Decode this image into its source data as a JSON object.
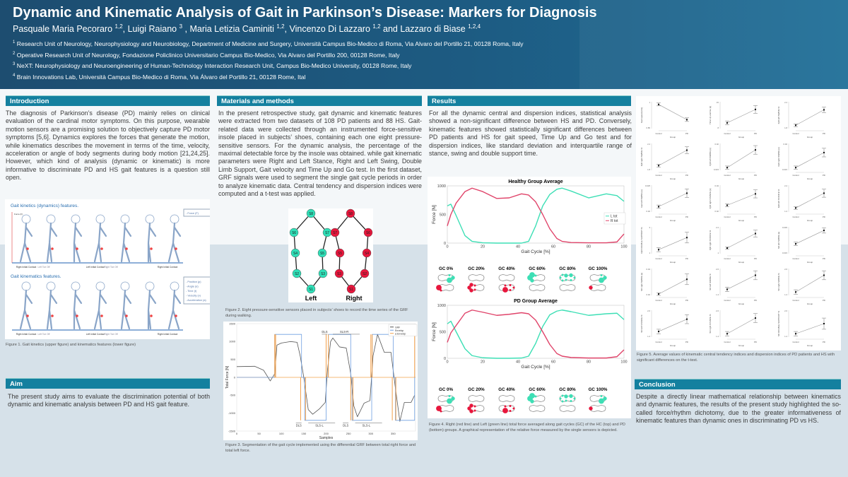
{
  "header": {
    "title": "Dynamic and Kinematic Analysis of Gait in Parkinson’s Disease: Markers for Diagnosis",
    "authors": [
      {
        "name": "Pasquale Maria Pecoraro ",
        "sup": "1,2",
        "sep": ", "
      },
      {
        "name": "Luigi Raiano ",
        "sup": "3",
        "sep": " , "
      },
      {
        "name": "Maria Letizia Caminiti ",
        "sup": "1,2",
        "sep": ", "
      },
      {
        "name": "Vincenzo Di Lazzaro ",
        "sup": "1,2",
        "sep": " and "
      },
      {
        "name": "Lazzaro di Biase ",
        "sup": "1,2,4",
        "sep": ""
      }
    ],
    "affiliations": [
      {
        "sup": "1",
        "text": " Research Unit of Neurology, Neurophysiology and Neurobiology, Department of Medicine and Surgery, Università Campus Bio-Medico di Roma, Via Alvaro del Portillo 21, 00128 Roma, Italy"
      },
      {
        "sup": "2",
        "text": " Operative Research Unit of Neurology, Fondazione Policlinico Universitario Campus Bio-Medico, Via Alvaro del Portillo 200, 00128 Rome, Italy"
      },
      {
        "sup": "3",
        "text": " NeXT: Neurophysiology and Neuroengineering of Human-Technology Interaction Research Unit, Campus Bio-Medico University, 00128 Rome, Italy"
      },
      {
        "sup": "4",
        "text": " Brain Innovations Lab, Università Campus Bio-Medico di Roma, Via Álvaro del Portillo 21, 00128 Rome, Ital"
      }
    ]
  },
  "sections": {
    "introduction": {
      "heading": "Introduction",
      "text": "The diagnosis of Parkinson’s disease (PD) mainly relies on clinical evaluation of the cardinal motor symptoms. On this purpose, wearable motion sensors are a promising solution to objectively capture PD motor symptoms [5,6]. Dynamics explores the forces that generate the motion, while  kinematics describes the movement in terms of the time, velocity, acceleration or angle of body segments during body motion [21,24,25]. However, which kind of analysis (dynamic or kinematic) is more informative to discriminate PD and HS gait features is a question still open."
    },
    "aim": {
      "heading": "Aim",
      "text": "The present study aims to evaluate the discrimination potential of both dynamic and kinematic analysis between PD and HS gait feature."
    },
    "methods": {
      "heading": "Materials and methods",
      "text": "In the present retrospective study, gait dynamic and kinematic features were extracted from two datasets of 108 PD patients and 88 HS. Gait-related data were collected through an instrumented force-sensitive insole placed in subjects’ shoes, containing each one eight pressure-sensitive sensors. For the dynamic analysis, the percentage of the maximal detectable force by the insole was obtained. while gait kinematic parameters were Right and Left Stance, Right and Left Swing, Double Limb Support, Gait velocity and Time Up and Go test. In the first dataset, GRF signals were used to segment the single gait cycle periods in order to analyze kinematic data. Central tendency and dispersion indices were computed and a t-test was applied."
    },
    "results": {
      "heading": "Results",
      "text": "For all the dynamic central and dispersion indices, statistical analysis showed a non-significant difference between HS and PD. Conversely, kinematic features showed statistically significant differences between PD patients and HS for gait speed, Time Up and Go test and for dispersion indices, like standard deviation and interquartile range of stance, swing and double support time."
    },
    "conclusion": {
      "heading": "Conclusion",
      "text": "Despite a directly linear mathematical relationship between kinematics and dynamic features, the results of the present study highlighted the so-called force/rhythm dichotomy, due to the greater informativeness of kinematic features than dynamic ones in discriminating PD vs HS."
    }
  },
  "figures": {
    "fig1": {
      "caption": "Figure 1. Gait kinetics (upper figure) and kinematics features (lower figure)",
      "kinetics_title": "Gait kinetics (dynamics) features.",
      "kinematics_title": "Gait kinematics features.",
      "force_axis": "Force (F)",
      "kinetics_legend": [
        "- Force (F)"
      ],
      "kinematics_legend": [
        "- Position (p)",
        "- Angle (α)",
        "- Time (t)",
        "- Velocity (v)",
        "- Acceleration (a)"
      ],
      "events": [
        "Right Initial Contact",
        "Left Toe Off",
        "Left Initial Contact",
        "Right Toe Off",
        "Right Initial Contact"
      ]
    },
    "fig2": {
      "caption": "Figure 2. Eight pressure-sensitive sensors placed in subjects’ shoes to record the time series of the GRF during walking.",
      "left_label": "Left",
      "right_label": "Right",
      "left_sensors": [
        "S8",
        "S6",
        "S7",
        "S4",
        "S5",
        "S2",
        "S3",
        "S1"
      ],
      "right_sensors": [
        "S8",
        "S7",
        "S6",
        "S5",
        "S4",
        "S3",
        "S2",
        "S1"
      ],
      "left_color": "#2fe0b8",
      "right_color": "#e8163c"
    },
    "fig3": {
      "caption": "Figure 3. Segmentation of the gait cycle implemented using the differential GRF between total right force and total left force.",
      "annotations": [
        "DLS",
        "SLS-R",
        "DLS",
        "SLS-L",
        "DLS",
        "SLS-L"
      ]
    },
    "fig4": {
      "caption": "Figure 4.  Right (red line) and Left (green line) total force averaged along gait cycles (GC) of the  HC (top) and PD (bottom) groups.  A graphical representation of the relative force measured by the single sensors is depicted.",
      "gc_labels": [
        "GC 0%",
        "GC 20%",
        "GC 40%",
        "GC 60%",
        "GC 80%",
        "GC 100%"
      ],
      "gc_left": [
        [
          0,
          0,
          0,
          0,
          0,
          1,
          3,
          2
        ],
        [
          0,
          0,
          0,
          0,
          0,
          0,
          0,
          0
        ],
        [
          0,
          0,
          0,
          0,
          0,
          0,
          0,
          0
        ],
        [
          3,
          3,
          2,
          1,
          0,
          0,
          0,
          0
        ],
        [
          1,
          1,
          1,
          2,
          1,
          2,
          1,
          1
        ],
        [
          0,
          0,
          0,
          0,
          0,
          1,
          3,
          2
        ]
      ],
      "gc_right": [
        [
          3,
          0,
          1,
          0,
          0,
          0,
          0,
          0
        ],
        [
          2,
          2,
          2,
          1,
          1,
          0,
          0,
          0
        ],
        [
          0,
          0,
          0,
          1,
          3,
          1,
          1,
          1
        ],
        [
          0,
          0,
          0,
          0,
          0,
          0,
          0,
          0
        ],
        [
          0,
          0,
          0,
          0,
          0,
          0,
          0,
          0
        ],
        [
          2,
          0,
          0,
          0,
          0,
          0,
          0,
          0
        ]
      ]
    },
    "fig5": {
      "caption": "Figure 5. Average values of kinematic central tendency indices and dispersion indices of PD patients and HS with significant differences on the t-test."
    }
  },
  "chart_data": [
    {
      "id": "healthy",
      "type": "line",
      "title": "Healthy Group Average",
      "xlabel": "Gait Cycle [%]",
      "ylabel": "Force [N]",
      "xlim": [
        0,
        100
      ],
      "ylim": [
        0,
        1000
      ],
      "xticks": [
        0,
        20,
        40,
        60,
        80,
        100
      ],
      "yticks": [
        0,
        500,
        1000
      ],
      "x": [
        0,
        2,
        5,
        10,
        14,
        20,
        28,
        35,
        42,
        46,
        50,
        54,
        58,
        62,
        65,
        70,
        80,
        90,
        96,
        100
      ],
      "series": [
        {
          "name": "L tot",
          "color": "#3ddfb5",
          "values": [
            650,
            680,
            480,
            130,
            30,
            5,
            0,
            0,
            0,
            30,
            300,
            650,
            850,
            940,
            960,
            910,
            790,
            860,
            830,
            730
          ]
        },
        {
          "name": "R tot",
          "color": "#e0446a",
          "values": [
            300,
            500,
            700,
            900,
            960,
            900,
            780,
            790,
            860,
            840,
            720,
            500,
            250,
            80,
            30,
            10,
            5,
            5,
            20,
            160
          ]
        }
      ]
    },
    {
      "id": "pd",
      "type": "line",
      "title": "PD Group Average",
      "xlabel": "Gait Cycle [%]",
      "ylabel": "Force [N]",
      "xlim": [
        0,
        100
      ],
      "ylim": [
        0,
        1000
      ],
      "xticks": [
        0,
        20,
        40,
        60,
        80,
        100
      ],
      "yticks": [
        0,
        500,
        1000
      ],
      "x": [
        0,
        2,
        5,
        10,
        14,
        20,
        28,
        35,
        42,
        46,
        50,
        54,
        58,
        62,
        65,
        70,
        80,
        90,
        96,
        100
      ],
      "series": [
        {
          "name": "L tot",
          "color": "#3ddfb5",
          "values": [
            650,
            700,
            500,
            180,
            50,
            10,
            0,
            0,
            5,
            40,
            280,
            600,
            820,
            890,
            910,
            880,
            810,
            840,
            850,
            730
          ]
        },
        {
          "name": "R tot",
          "color": "#e0446a",
          "values": [
            300,
            480,
            620,
            850,
            910,
            870,
            810,
            830,
            860,
            840,
            720,
            500,
            260,
            90,
            40,
            15,
            5,
            5,
            30,
            160
          ]
        }
      ]
    },
    {
      "id": "segmentation",
      "type": "line",
      "title": "",
      "xlabel": "Samples",
      "ylabel": "Total Force [N]",
      "xlim": [
        0,
        400
      ],
      "ylim": [
        -1500,
        1500
      ],
      "xticks": [
        0,
        50,
        100,
        150,
        200,
        250,
        300,
        350
      ],
      "yticks": [
        -1500,
        -1000,
        -500,
        0,
        500,
        1000,
        1500
      ],
      "series": [
        {
          "name": "GRF",
          "color": "#555555",
          "x": [
            0,
            40,
            60,
            75,
            85,
            90,
            100,
            120,
            135,
            142,
            150,
            160,
            170,
            185,
            198,
            203,
            210,
            215,
            230,
            245,
            255,
            262,
            270,
            285,
            298,
            305,
            315,
            330,
            345,
            355,
            365,
            375,
            390,
            398
          ],
          "values": [
            300,
            310,
            200,
            -100,
            100,
            900,
            960,
            1000,
            980,
            600,
            0,
            -900,
            -1030,
            -880,
            -700,
            200,
            1000,
            1100,
            850,
            820,
            100,
            -800,
            -1100,
            -720,
            -650,
            600,
            1200,
            700,
            700,
            -300,
            -1230,
            -700,
            -700,
            -500
          ]
        },
        {
          "name": "Envelop",
          "color": "#6f9fe0",
          "x": [
            0,
            85,
            85,
            145,
            145,
            152,
            152,
            200,
            200,
            205,
            205,
            255,
            255,
            258,
            258,
            302,
            302,
            303,
            303,
            350,
            350,
            355,
            355,
            398,
            398
          ],
          "values": [
            0,
            0,
            1200,
            1200,
            0,
            0,
            -1200,
            -1200,
            0,
            0,
            1200,
            1200,
            0,
            0,
            -1200,
            -1200,
            0,
            0,
            1200,
            1200,
            0,
            0,
            -1200,
            -1200,
            0
          ]
        },
        {
          "name": "Δ Envelop",
          "color": "#f2a04a",
          "spikes": [
            85,
            87,
            143,
            154,
            200,
            205,
            255,
            260,
            300,
            303,
            348,
            356,
            398
          ],
          "spike_values": [
            1200,
            1200,
            -1200,
            -1200,
            1200,
            1200,
            -1200,
            -1200,
            1200,
            1200,
            -1200,
            -1200,
            1200
          ]
        }
      ]
    },
    {
      "id": "kinematic-indices",
      "type": "scatter",
      "xcategories": [
        "Control",
        "PD"
      ],
      "xlabel": "Group",
      "plots": [
        {
          "label": "Gait speed [m/s]",
          "ylim": [
            0.85,
            1.0
          ],
          "control": 0.985,
          "pd": 0.9,
          "err": [
            0.008,
            0.01
          ]
        },
        {
          "label": "Time Up and Go [s]",
          "ylim": [
            8,
            15
          ],
          "control": 9.5,
          "pd": 13,
          "err": [
            0.5,
            1
          ]
        },
        {
          "label": "IQR left SWING %",
          "ylim": [
            1.8,
            2.2
          ],
          "control": 1.85,
          "pd": 2.08,
          "err": [
            0.02,
            0.04
          ]
        },
        {
          "label": "IQR right SWING %",
          "ylim": [
            1.8,
            2.2
          ],
          "control": 1.87,
          "pd": 2.1,
          "err": [
            0.02,
            0.05
          ]
        },
        {
          "label": "IQR left SWING [s]",
          "ylim": [
            0.015,
            0.02
          ],
          "control": 0.0155,
          "pd": 0.0188,
          "err": [
            0.0003,
            0.0008
          ]
        },
        {
          "label": "IQR right SWING [s]",
          "ylim": [
            0.015,
            0.02
          ],
          "control": 0.0155,
          "pd": 0.0183,
          "err": [
            0.0003,
            0.0008
          ]
        },
        {
          "label": "Gait left SWING [s]",
          "ylim": [
            0.02,
            0.025
          ],
          "control": 0.021,
          "pd": 0.0235,
          "err": [
            0.0003,
            0.0008
          ]
        },
        {
          "label": "IQR right STANCE [s]",
          "ylim": [
            0.02,
            0.04
          ],
          "control": 0.025,
          "pd": 0.0335,
          "err": [
            0.001,
            0.003
          ]
        },
        {
          "label": "IQR left STANCE %",
          "ylim": [
            1.2,
            2.2
          ],
          "control": 1.35,
          "pd": 1.9,
          "err": [
            0.05,
            0.15
          ]
        },
        {
          "label": "IQR DOUBLE SUPPORT %",
          "ylim": [
            1,
            3
          ],
          "control": 1.3,
          "pd": 2.2,
          "err": [
            0.15,
            0.4
          ]
        },
        {
          "label": "IQR right STANCE %",
          "ylim": [
            1,
            2.2
          ],
          "control": 1.25,
          "pd": 1.9,
          "err": [
            0.05,
            0.15
          ]
        },
        {
          "label": "SD left SWING [s]",
          "ylim": [
            0.015,
            0.045
          ],
          "control": 0.026,
          "pd": 0.041,
          "err": [
            0.002,
            0.003
          ]
        },
        {
          "label": "SD right SWING [s]",
          "ylim": [
            0.02,
            0.04
          ],
          "control": 0.021,
          "pd": 0.032,
          "err": [
            0.001,
            0.004
          ]
        },
        {
          "label": "SD left SWING %",
          "ylim": [
            1.4,
            2.6
          ],
          "control": 1.67,
          "pd": 2.3,
          "err": [
            0.1,
            0.2
          ]
        },
        {
          "label": "SD right SWING %",
          "ylim": [
            1.4,
            2.6
          ],
          "control": 1.55,
          "pd": 2.3,
          "err": [
            0.1,
            0.2
          ]
        },
        {
          "label": "SD left STANCE %",
          "ylim": [
            1.4,
            2.6
          ],
          "control": 1.65,
          "pd": 2.2,
          "err": [
            0.1,
            0.2
          ]
        },
        {
          "label": "SD right STANCE %",
          "ylim": [
            1.4,
            2.6
          ],
          "control": 1.55,
          "pd": 2.25,
          "err": [
            0.1,
            0.2
          ]
        },
        {
          "label": "SD DOUBLE SUPPORT %",
          "ylim": [
            1.4,
            2.6
          ],
          "control": 1.55,
          "pd": 2.0,
          "err": [
            0.1,
            0.25
          ]
        }
      ]
    }
  ]
}
